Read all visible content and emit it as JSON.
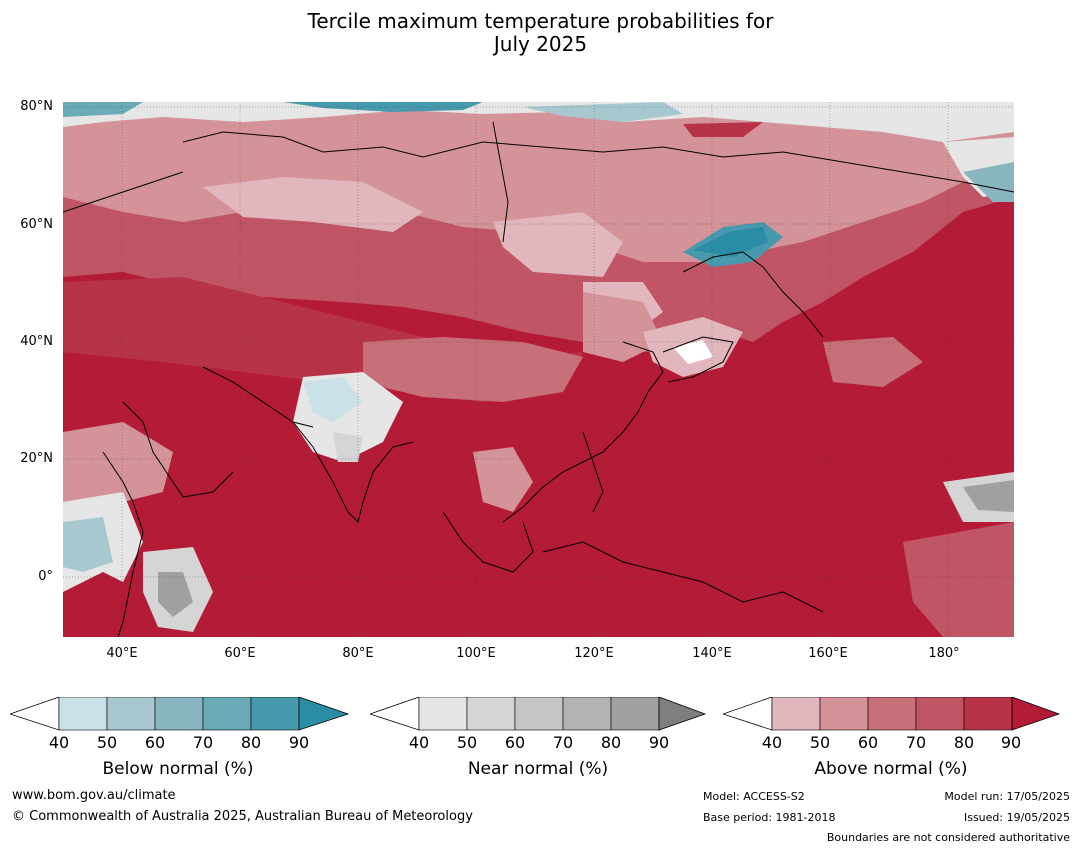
{
  "title": {
    "line1": "Tercile maximum temperature probabilities for",
    "line2": "July 2025"
  },
  "map": {
    "lat_labels": [
      "80°N",
      "60°N",
      "40°N",
      "20°N",
      "0°"
    ],
    "lon_labels": [
      "40°E",
      "60°E",
      "80°E",
      "100°E",
      "120°E",
      "140°E",
      "160°E",
      "180°"
    ],
    "lat_range": [
      -10,
      80
    ],
    "lon_range": [
      30,
      191
    ]
  },
  "colorbars": [
    {
      "id": "below",
      "title": "Below normal (%)",
      "ticks": [
        "40",
        "50",
        "60",
        "70",
        "80",
        "90"
      ],
      "colors": [
        "#c9e1e7",
        "#a7c8ce",
        "#88b5c0",
        "#6aabb7",
        "#4799ad",
        "#2b8da5"
      ]
    },
    {
      "id": "near",
      "title": "Near normal (%)",
      "ticks": [
        "40",
        "50",
        "60",
        "70",
        "80",
        "90"
      ],
      "colors": [
        "#e6e6e6",
        "#d5d5d5",
        "#c6c6c6",
        "#b3b3b3",
        "#a0a0a0",
        "#7f7f7f"
      ]
    },
    {
      "id": "above",
      "title": "Above normal (%)",
      "ticks": [
        "40",
        "50",
        "60",
        "70",
        "80",
        "90"
      ],
      "colors": [
        "#e1b6bc",
        "#d49399",
        "#c77079",
        "#c05665",
        "#b73448",
        "#b41b36"
      ]
    }
  ],
  "footer": {
    "website": "www.bom.gov.au/climate",
    "copyright": "© Commonwealth of Australia 2025, Australian Bureau of Meteorology",
    "model": "Model: ACCESS-S2",
    "base_period": "Base period: 1981-2018",
    "model_run": "Model run: 17/05/2025",
    "issued": "Issued: 19/05/2025",
    "disclaimer": "Boundaries are not considered authoritative"
  }
}
